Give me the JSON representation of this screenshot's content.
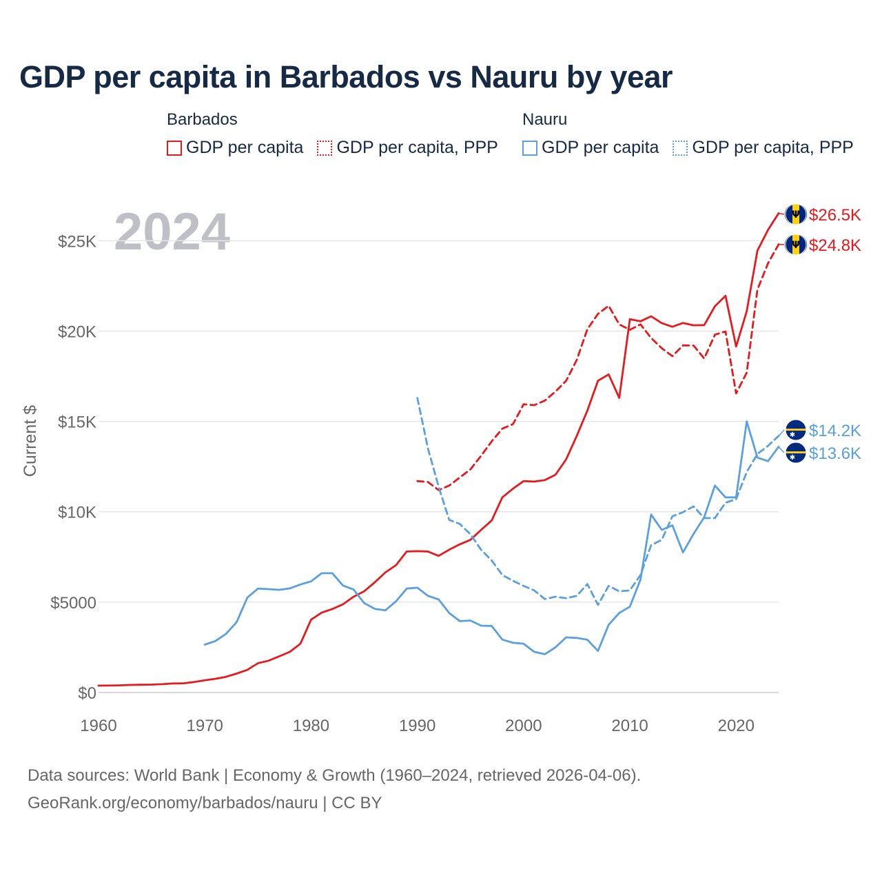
{
  "title": "GDP per capita in Barbados vs Nauru by year",
  "legend": {
    "groups": [
      {
        "name": "Barbados",
        "color": "#e8191c",
        "items": [
          {
            "label": "GDP per capita",
            "style": "solid"
          },
          {
            "label": "GDP per capita, PPP",
            "style": "dotted"
          }
        ]
      },
      {
        "name": "Nauru",
        "color": "#5aa0e0",
        "items": [
          {
            "label": "GDP per capita",
            "style": "solid"
          },
          {
            "label": "GDP per capita, PPP",
            "style": "dotted"
          }
        ]
      }
    ]
  },
  "year_watermark": "2024",
  "footer": {
    "line1": "Data sources: World Bank | Economy & Growth (1960–2024, retrieved 2026-04-06).",
    "line2": "GeoRank.org/economy/barbados/nauru | CC BY"
  },
  "chart_data": {
    "type": "line",
    "title": "GDP per capita in Barbados vs Nauru by year",
    "xlabel": "",
    "ylabel": "Current $",
    "xlim": [
      1960,
      2024
    ],
    "ylim": [
      0,
      26500
    ],
    "x_ticks": [
      1960,
      1970,
      1980,
      1990,
      2000,
      2010,
      2020
    ],
    "y_ticks": [
      {
        "value": 0,
        "label": "$0"
      },
      {
        "value": 5000,
        "label": "$5000"
      },
      {
        "value": 10000,
        "label": "$10K"
      },
      {
        "value": 15000,
        "label": "$15K"
      },
      {
        "value": 20000,
        "label": "$20K"
      },
      {
        "value": 25000,
        "label": "$25K"
      }
    ],
    "series": [
      {
        "name": "Barbados GDP per capita",
        "country": "Barbados",
        "color": "#e8191c",
        "dash": false,
        "end_label": "$26.5K",
        "flag": "barbados",
        "x": [
          1960,
          1961,
          1962,
          1963,
          1964,
          1965,
          1966,
          1967,
          1968,
          1969,
          1970,
          1971,
          1972,
          1973,
          1974,
          1975,
          1976,
          1977,
          1978,
          1979,
          1980,
          1981,
          1982,
          1983,
          1984,
          1985,
          1986,
          1987,
          1988,
          1989,
          1990,
          1991,
          1992,
          1993,
          1994,
          1995,
          1996,
          1997,
          1998,
          1999,
          2000,
          2001,
          2002,
          2003,
          2004,
          2005,
          2006,
          2007,
          2008,
          2009,
          2010,
          2011,
          2012,
          2013,
          2014,
          2015,
          2016,
          2017,
          2018,
          2019,
          2020,
          2021,
          2022,
          2023,
          2024
        ],
        "values": [
          380,
          385,
          395,
          420,
          430,
          440,
          460,
          500,
          510,
          580,
          680,
          760,
          870,
          1050,
          1250,
          1620,
          1760,
          2000,
          2250,
          2700,
          4030,
          4420,
          4620,
          4880,
          5300,
          5600,
          6100,
          6650,
          7050,
          7800,
          7820,
          7800,
          7560,
          7900,
          8200,
          8450,
          9000,
          9520,
          10800,
          11280,
          11700,
          11670,
          11750,
          12050,
          12900,
          14200,
          15600,
          17250,
          17600,
          16300,
          20660,
          20540,
          20820,
          20440,
          20240,
          20450,
          20320,
          20330,
          21370,
          21950,
          19140,
          21100,
          24450,
          25600,
          26520
        ]
      },
      {
        "name": "Barbados GDP per capita, PPP",
        "country": "Barbados",
        "color": "#e8191c",
        "dash": true,
        "end_label": "$24.8K",
        "flag": "barbados",
        "x": [
          1990,
          1991,
          1992,
          1993,
          1994,
          1995,
          1996,
          1997,
          1998,
          1999,
          2000,
          2001,
          2002,
          2003,
          2004,
          2005,
          2006,
          2007,
          2008,
          2009,
          2010,
          2011,
          2012,
          2013,
          2014,
          2015,
          2016,
          2017,
          2018,
          2019,
          2020,
          2021,
          2022,
          2023,
          2024
        ],
        "values": [
          11700,
          11650,
          11200,
          11450,
          11900,
          12350,
          13100,
          13900,
          14600,
          14850,
          15950,
          15900,
          16150,
          16650,
          17250,
          18400,
          20100,
          20950,
          21400,
          20370,
          20070,
          20370,
          19620,
          19050,
          18610,
          19210,
          19200,
          18480,
          19800,
          19980,
          16550,
          17700,
          22300,
          23750,
          24800
        ]
      },
      {
        "name": "Nauru GDP per capita",
        "country": "Nauru",
        "color": "#5aa0e0",
        "dash": false,
        "end_label": "$13.6K",
        "flag": "nauru",
        "x": [
          1970,
          1971,
          1972,
          1973,
          1974,
          1975,
          1976,
          1977,
          1978,
          1979,
          1980,
          1981,
          1982,
          1983,
          1984,
          1985,
          1986,
          1987,
          1988,
          1989,
          1990,
          1991,
          1992,
          1993,
          1994,
          1995,
          1996,
          1997,
          1998,
          1999,
          2000,
          2001,
          2002,
          2003,
          2004,
          2005,
          2006,
          2007,
          2008,
          2009,
          2010,
          2011,
          2012,
          2013,
          2014,
          2015,
          2016,
          2017,
          2018,
          2019,
          2020,
          2021,
          2022,
          2023,
          2024
        ],
        "values": [
          2650,
          2850,
          3250,
          3900,
          5250,
          5750,
          5720,
          5680,
          5760,
          5980,
          6150,
          6600,
          6600,
          5920,
          5700,
          4950,
          4630,
          4550,
          5050,
          5750,
          5800,
          5350,
          5150,
          4400,
          3950,
          3980,
          3700,
          3680,
          2930,
          2750,
          2700,
          2250,
          2120,
          2500,
          3050,
          3020,
          2920,
          2300,
          3750,
          4400,
          4750,
          6250,
          9850,
          9000,
          9250,
          7750,
          8780,
          9700,
          11450,
          10800,
          10800,
          15000,
          13000,
          12800,
          13600
        ]
      },
      {
        "name": "Nauru GDP per capita, PPP",
        "country": "Nauru",
        "color": "#5aa0e0",
        "dash": true,
        "end_label": "$14.2K",
        "flag": "nauru",
        "x": [
          1990,
          1991,
          1992,
          1993,
          1994,
          1995,
          1996,
          1997,
          1998,
          1999,
          2000,
          2001,
          2002,
          2003,
          2004,
          2005,
          2006,
          2007,
          2008,
          2009,
          2010,
          2011,
          2012,
          2013,
          2014,
          2015,
          2016,
          2017,
          2018,
          2019,
          2020,
          2021,
          2022,
          2023,
          2024
        ],
        "values": [
          16300,
          13500,
          11400,
          9550,
          9330,
          8750,
          7900,
          7300,
          6500,
          6180,
          5900,
          5650,
          5170,
          5300,
          5220,
          5350,
          6000,
          4850,
          5900,
          5600,
          5650,
          6500,
          8150,
          8450,
          9750,
          9980,
          10300,
          9650,
          9650,
          10500,
          10700,
          12200,
          13200,
          13650,
          14200
        ]
      }
    ]
  }
}
